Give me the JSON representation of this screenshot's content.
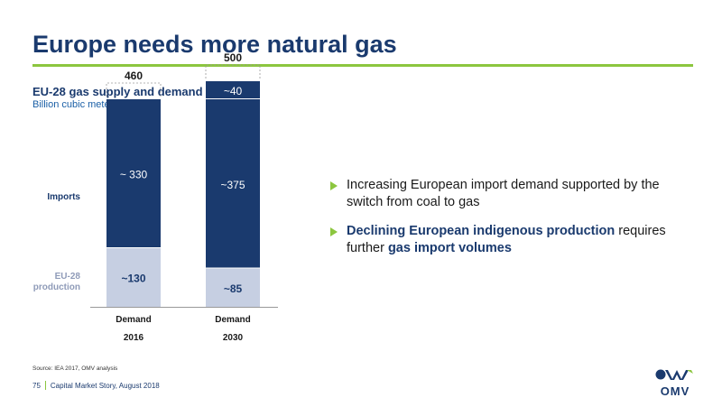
{
  "slide": {
    "title": "Europe needs more natural gas",
    "source": "Source: IEA 2017, OMV analysis",
    "page_number": "75",
    "footer_text": "Capital Market Story, August 2018",
    "logo_text": "OMV",
    "accent_color": "#8cc63f",
    "brand_color": "#1a3a6e"
  },
  "chart_data": {
    "type": "bar",
    "stacked": true,
    "title": "EU-28 gas supply and demand",
    "ylabel": "Billion cubic meter (bcm)",
    "categories": [
      "Demand",
      "Demand"
    ],
    "category_years": [
      "2016",
      "2030"
    ],
    "totals": [
      "460",
      "500"
    ],
    "ylim": [
      0,
      500
    ],
    "series": [
      {
        "name": "EU-28 production",
        "values": [
          130,
          85
        ],
        "labels": [
          "~130",
          "~85"
        ],
        "color": "#c6cfe2"
      },
      {
        "name": "Imports",
        "values": [
          330,
          375
        ],
        "labels": [
          "~ 330",
          "~375"
        ],
        "color": "#1a3a6e"
      },
      {
        "name": "",
        "values": [
          0,
          40
        ],
        "labels": [
          "",
          "~40"
        ],
        "color": "#1a3a6e"
      }
    ]
  },
  "bullets": [
    {
      "parts": [
        {
          "text": "Increasing European import demand supported by the switch from coal to gas",
          "bold": false
        }
      ]
    },
    {
      "parts": [
        {
          "text": "Declining European indigenous production",
          "bold": true
        },
        {
          "text": " requires further ",
          "bold": false
        },
        {
          "text": "gas import volumes",
          "bold": true
        }
      ]
    }
  ]
}
